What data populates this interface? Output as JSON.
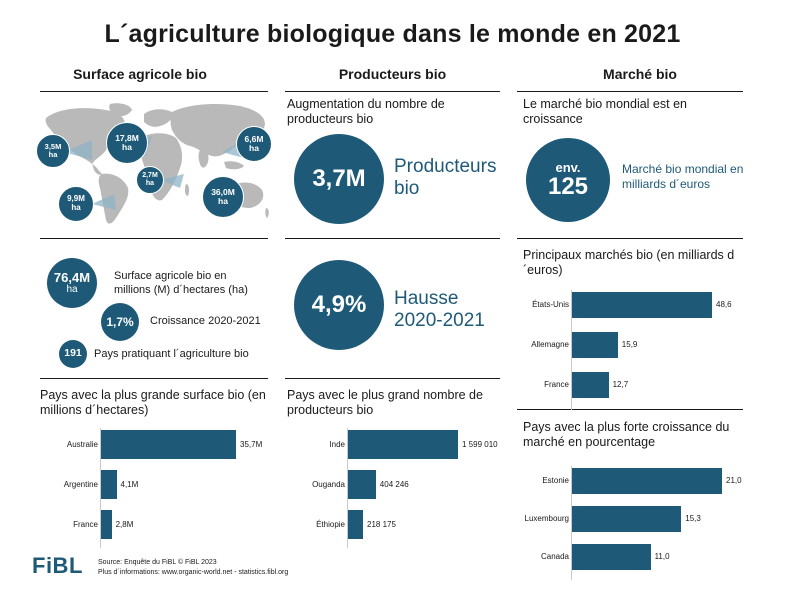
{
  "title": "L´agriculture biologique dans le monde en 2021",
  "columns": {
    "surface": "Surface agricole bio",
    "producers": "Producteurs bio",
    "market": "Marché bio"
  },
  "map_bubbles": [
    {
      "value": "3,5M",
      "unit": "ha"
    },
    {
      "value": "17,8M",
      "unit": "ha"
    },
    {
      "value": "6,6M",
      "unit": "ha"
    },
    {
      "value": "2,7M",
      "unit": "ha"
    },
    {
      "value": "9,9M",
      "unit": "ha"
    },
    {
      "value": "36,0M",
      "unit": "ha"
    }
  ],
  "surface_stats": {
    "total_value": "76,4M",
    "total_unit": "ha",
    "total_desc": "Surface agricole bio en millions (M) d´hectares (ha)",
    "growth_value": "1,7%",
    "growth_desc": "Croissance 2020-2021",
    "countries_value": "191",
    "countries_desc": "Pays pratiquant l´agriculture bio"
  },
  "producers_stats": {
    "increase_title": "Augmentation du nombre de producteurs bio",
    "count_value": "3,7M",
    "count_desc": "Producteurs bio",
    "growth_value": "4,9%",
    "growth_desc": "Hausse 2020-2021"
  },
  "market_stats": {
    "growth_title": "Le marché bio mondial est en croissance",
    "approx": "env.",
    "value": "125",
    "desc": "Marché bio mondial en milliards d´euros"
  },
  "source": {
    "line1": "Source: Enquête du FiBL © FiBL 2023",
    "line2": "Plus d´informations: www.organic-world.net - statistics.fibl.org"
  },
  "logo": "FiBL",
  "chart_data": [
    {
      "type": "bar",
      "orientation": "horizontal",
      "title": "Pays avec la plus grande surface bio (en millions d´hectares)",
      "categories": [
        "Australie",
        "Argentine",
        "France"
      ],
      "values": [
        35.7,
        4.1,
        2.8
      ],
      "value_labels": [
        "35,7M",
        "4,1M",
        "2,8M"
      ]
    },
    {
      "type": "bar",
      "orientation": "horizontal",
      "title": "Pays avec le plus grand nombre de producteurs bio",
      "categories": [
        "Inde",
        "Ouganda",
        "Éthiopie"
      ],
      "values": [
        1599010,
        404246,
        218175
      ],
      "value_labels": [
        "1 599 010",
        "404 246",
        "218 175"
      ]
    },
    {
      "type": "bar",
      "orientation": "horizontal",
      "title": "Principaux marchés bio (en milliards d´euros)",
      "categories": [
        "États-Unis",
        "Allemagne",
        "France"
      ],
      "values": [
        48.6,
        15.9,
        12.7
      ],
      "value_labels": [
        "48,6",
        "15,9",
        "12,7"
      ]
    },
    {
      "type": "bar",
      "orientation": "horizontal",
      "title": "Pays avec la plus forte croissance du marché  en pourcentage",
      "categories": [
        "Estonie",
        "Luxembourg",
        "Canada"
      ],
      "values": [
        21.0,
        15.3,
        11.0
      ],
      "value_labels": [
        "21,0",
        "15,3",
        "11,0"
      ]
    }
  ]
}
